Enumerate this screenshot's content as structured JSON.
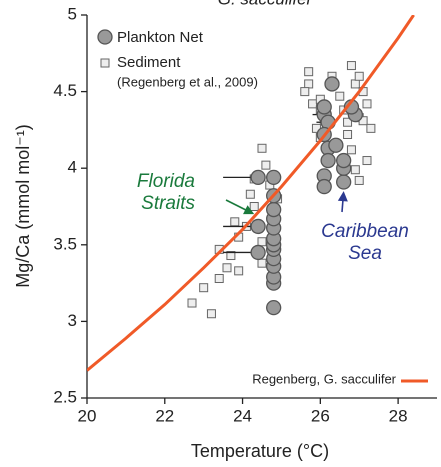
{
  "chart_data": {
    "type": "scatter",
    "title": "G. sacculifer",
    "xlabel": "Temperature (°C)",
    "ylabel": "Mg/Ca (mmol mol⁻¹)",
    "xlim": [
      20,
      29
    ],
    "ylim": [
      2.5,
      5
    ],
    "xticks": [
      20,
      22,
      24,
      26,
      28
    ],
    "yticks": [
      2.5,
      3,
      3.5,
      4,
      4.5,
      5
    ],
    "legend": "upper left",
    "series": [
      {
        "name": "Sediment",
        "note": "(Regenberg et al., 2009)",
        "marker": "square",
        "color": "#eeeeee",
        "edgecolor": "#666666",
        "x": [
          22.7,
          23.0,
          23.2,
          23.4,
          23.6,
          23.7,
          23.4,
          23.9,
          23.9,
          24.1,
          23.8,
          24.3,
          24.2,
          24.3,
          24.5,
          24.6,
          24.5,
          24.5,
          24.7,
          24.9,
          25.7,
          25.7,
          25.6,
          25.8,
          26.0,
          26.0,
          26.1,
          26.2,
          26.3,
          26.5,
          26.6,
          26.7,
          26.8,
          26.9,
          27.0,
          27.1,
          27.2,
          27.0,
          27.1,
          27.3,
          26.8,
          26.9,
          27.0,
          27.2,
          26.7,
          25.9,
          26.0
        ],
        "values": [
          3.12,
          3.22,
          3.05,
          3.28,
          3.35,
          3.43,
          3.47,
          3.33,
          3.55,
          3.62,
          3.65,
          3.75,
          3.83,
          3.93,
          3.52,
          4.02,
          4.13,
          3.38,
          3.89,
          3.8,
          4.63,
          4.55,
          4.5,
          4.42,
          4.45,
          4.38,
          4.32,
          4.15,
          4.6,
          4.47,
          4.38,
          4.3,
          4.67,
          4.55,
          4.6,
          4.5,
          4.42,
          4.33,
          4.31,
          4.26,
          4.12,
          3.99,
          3.92,
          4.05,
          4.22,
          4.26,
          4.2
        ]
      },
      {
        "name": "Plankton Net",
        "marker": "circle",
        "color": "#999999",
        "edgecolor": "#555555",
        "x": [
          24.8,
          24.8,
          24.8,
          24.8,
          24.8,
          24.8,
          24.8,
          24.8,
          24.8,
          24.8,
          24.8,
          24.8,
          24.8,
          24.4,
          24.4,
          24.4,
          26.1,
          26.2,
          26.1,
          26.2,
          26.2,
          26.1,
          26.1,
          26.6,
          26.6,
          26.6,
          26.4,
          26.3,
          26.1,
          26.9,
          26.8
        ],
        "values": [
          3.09,
          3.25,
          3.29,
          3.36,
          3.41,
          3.47,
          3.5,
          3.54,
          3.61,
          3.67,
          3.73,
          3.82,
          3.94,
          3.94,
          3.62,
          3.45,
          4.35,
          4.3,
          4.22,
          4.13,
          4.05,
          3.95,
          3.88,
          3.91,
          4.0,
          4.05,
          4.15,
          4.55,
          4.4,
          4.35,
          4.4
        ],
        "xerr": [
          null,
          null,
          null,
          null,
          null,
          null,
          null,
          null,
          null,
          null,
          null,
          null,
          null,
          0.9,
          0.9,
          0.9,
          0.3,
          0.3,
          null,
          null,
          null,
          null,
          null,
          null,
          null,
          null,
          null,
          null,
          null,
          null,
          null
        ]
      },
      {
        "name": "Regenberg, G. sacculifer",
        "marker": "line",
        "color": "#f05a28",
        "x": [
          20,
          21,
          22,
          23,
          24,
          25,
          26,
          27,
          28,
          28.4
        ],
        "values": [
          2.68,
          2.89,
          3.11,
          3.35,
          3.6,
          3.88,
          4.18,
          4.5,
          4.85,
          5.0
        ]
      }
    ],
    "annotations": [
      {
        "lines": [
          "Florida",
          "Straits"
        ],
        "color": "#1a7a3c",
        "x": 24.3,
        "y": 3.7
      },
      {
        "lines": [
          "Caribbean",
          "Sea"
        ],
        "color": "#2b3990",
        "x": 26.6,
        "y": 3.85
      }
    ]
  }
}
